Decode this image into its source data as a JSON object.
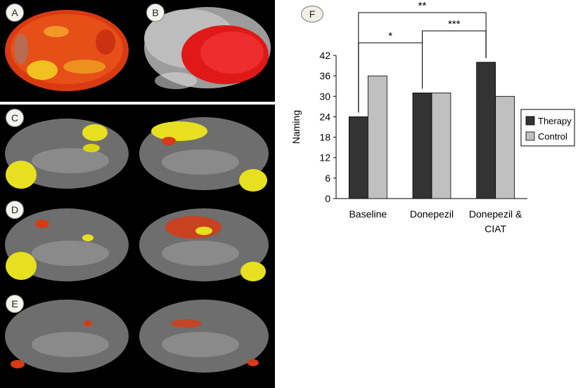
{
  "panels": {
    "a": {
      "label": "A"
    },
    "b": {
      "label": "B"
    },
    "c": {
      "label": "C"
    },
    "d": {
      "label": "D"
    },
    "e": {
      "label": "E"
    },
    "f": {
      "label": "F"
    }
  },
  "chart_data": {
    "type": "bar",
    "categories": [
      "Baseline",
      "Donepezil",
      "Donepezil & CIAT"
    ],
    "series": [
      {
        "name": "Therapy",
        "values": [
          24,
          31,
          40
        ],
        "color": "#333333"
      },
      {
        "name": "Control",
        "values": [
          36,
          31,
          30
        ],
        "color": "#c0c0c0"
      }
    ],
    "ylabel": "Naming",
    "xlabel": "",
    "ylim": [
      0,
      42
    ],
    "yticks": [
      0,
      6,
      12,
      18,
      24,
      30,
      36,
      42
    ],
    "grid": false,
    "legend_position": "right",
    "significance": [
      {
        "from": 0,
        "to": 1,
        "label": "*"
      },
      {
        "from": 0,
        "to": 2,
        "label": "**"
      },
      {
        "from": 1,
        "to": 2,
        "label": "***"
      }
    ]
  }
}
